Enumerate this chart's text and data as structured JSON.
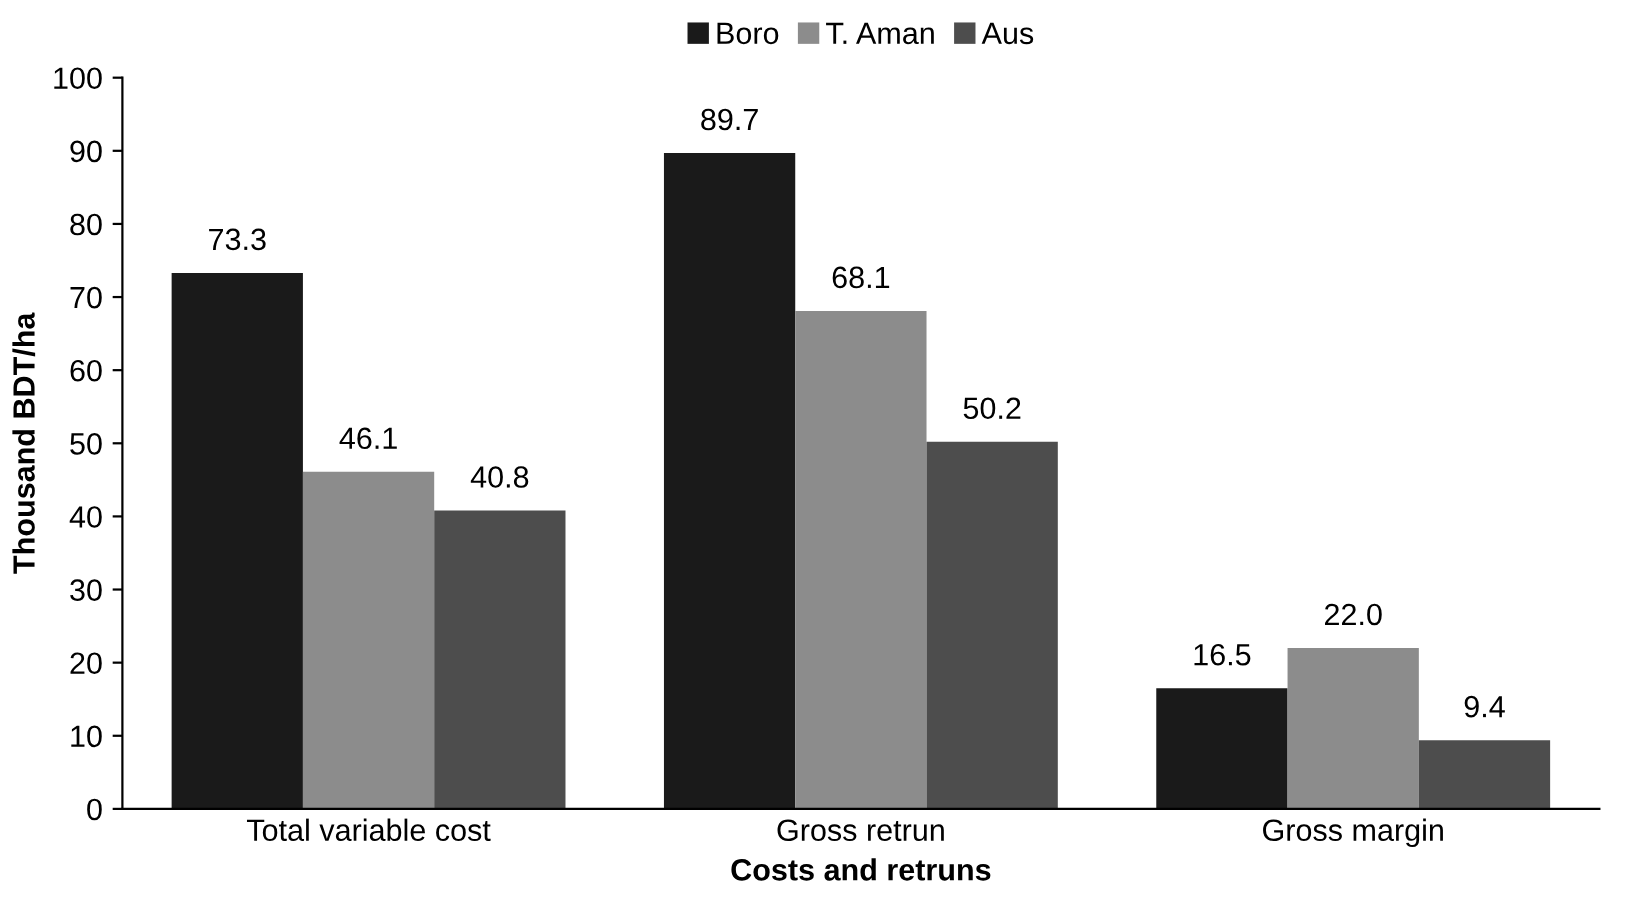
{
  "chart_data": {
    "type": "bar",
    "xlabel": "Costs and retruns",
    "ylabel": "Thousand BDT/ha",
    "categories": [
      "Total variable cost",
      "Gross retrun",
      "Gross margin"
    ],
    "series": [
      {
        "name": "Boro",
        "color": "#1a1a1a",
        "values": [
          73.3,
          89.7,
          16.5
        ],
        "value_labels": [
          "73.3",
          "89.7",
          "16.5"
        ]
      },
      {
        "name": "T. Aman",
        "color": "#8c8c8c",
        "values": [
          46.1,
          68.1,
          22.0
        ],
        "value_labels": [
          "46.1",
          "68.1",
          "22.0"
        ]
      },
      {
        "name": "Aus",
        "color": "#4d4d4d",
        "values": [
          40.8,
          50.2,
          9.4
        ],
        "value_labels": [
          "40.8",
          "50.2",
          "9.4"
        ]
      }
    ],
    "ylim": [
      0,
      100
    ],
    "yticks": [
      0,
      10,
      20,
      30,
      40,
      50,
      60,
      70,
      80,
      90,
      100
    ],
    "grid": false,
    "legend": "top"
  }
}
